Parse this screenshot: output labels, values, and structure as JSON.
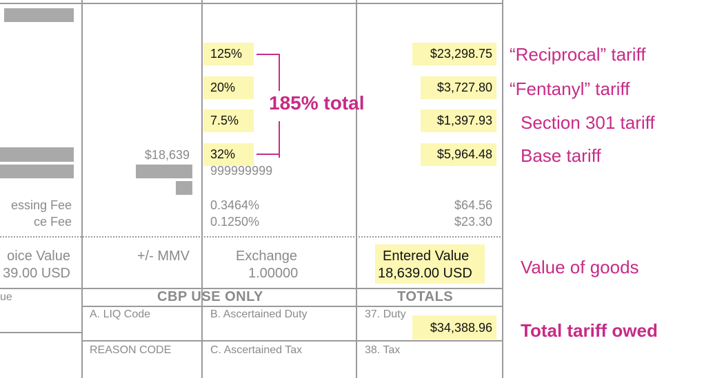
{
  "rates": {
    "reciprocal": "125%",
    "fentanyl": "20%",
    "section301": "7.5%",
    "base": "32%"
  },
  "amounts": {
    "reciprocal": "$23,298.75",
    "fentanyl": "$3,727.80",
    "section301": "$1,397.93",
    "base": "$5,964.48"
  },
  "line_value": "$18,639",
  "hts_number": "999999999",
  "fees": {
    "processing_label": "essing Fee",
    "harbor_label": "ce Fee",
    "processing_rate": "0.3464%",
    "harbor_rate": "0.1250%",
    "processing_amount": "$64.56",
    "harbor_amount": "$23.30"
  },
  "invoice": {
    "label": "oice Value",
    "value": "39.00 USD",
    "mmv_label": "+/- MMV",
    "exchange_label": "Exchange",
    "exchange_value": "1.00000",
    "entered_label": "Entered Value",
    "entered_value": "18,639.00 USD"
  },
  "footer": {
    "left_fragment": "ue",
    "cbp_header": "CBP USE ONLY",
    "totals_header": "TOTALS",
    "liq_code": "A. LIQ Code",
    "ascertained_duty": "B. Ascertained Duty",
    "duty_label": "37. Duty",
    "duty_total": "$34,388.96",
    "reason_code": "REASON CODE",
    "ascertained_tax": "C. Ascertained Tax",
    "tax_label": "38. Tax"
  },
  "annotations": {
    "total_pct": "185% total",
    "reciprocal": "“Reciprocal” tariff",
    "fentanyl": "“Fentanyl” tariff",
    "section301": "Section 301 tariff",
    "base": "Base tariff",
    "value_of_goods": "Value of goods",
    "total_owed": "Total tariff owed"
  },
  "colors": {
    "annotation": "#c72b86",
    "highlight": "#fcf7b3",
    "redaction": "#a9a9a9"
  }
}
